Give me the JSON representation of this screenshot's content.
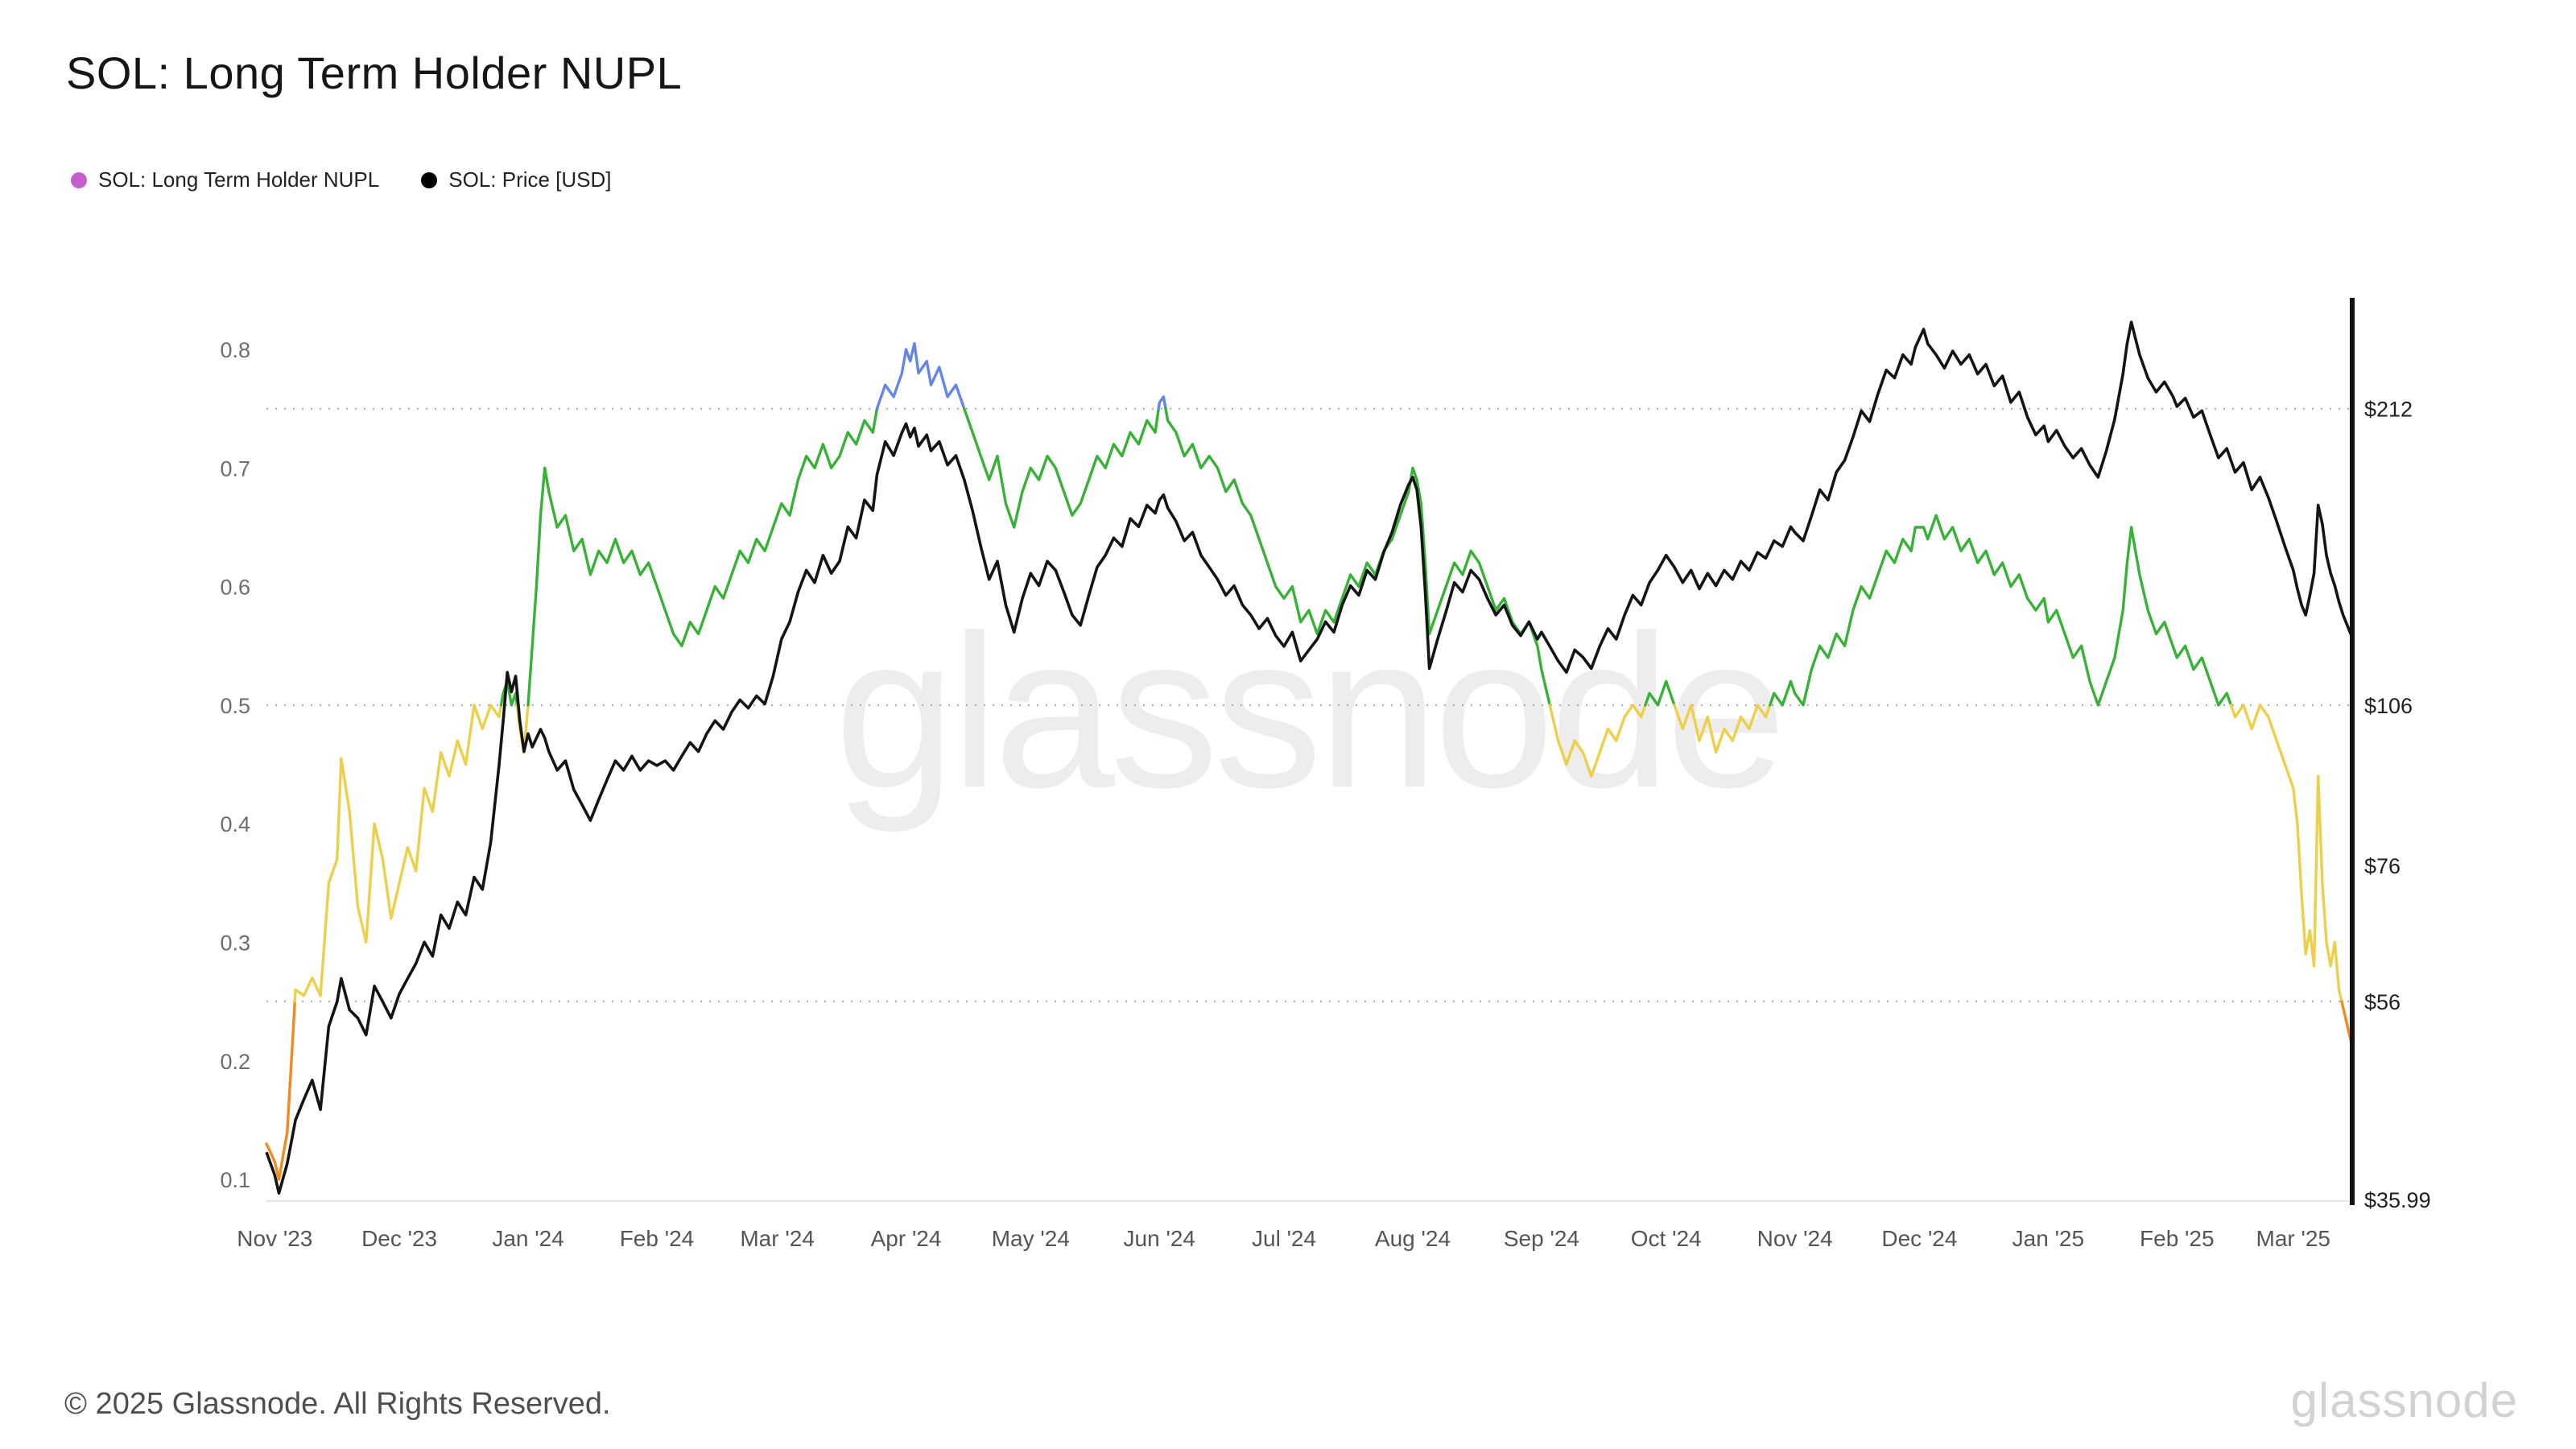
{
  "page": {
    "title": "SOL: Long Term Holder NUPL",
    "footer": "© 2025 Glassnode. All Rights Reserved.",
    "watermark": "glassnode"
  },
  "legend": [
    {
      "label": "SOL: Long Term Holder NUPL",
      "color": "#c55fce"
    },
    {
      "label": "SOL: Price [USD]",
      "color": "#000000"
    }
  ],
  "chart_data": {
    "type": "line",
    "title": "SOL: Long Term Holder NUPL",
    "x_unit": "days since 2023-11-01",
    "x_domain": [
      -2,
      500
    ],
    "x_ticks": [
      {
        "d": 0,
        "label": "Nov '23"
      },
      {
        "d": 30,
        "label": "Dec '23"
      },
      {
        "d": 61,
        "label": "Jan '24"
      },
      {
        "d": 92,
        "label": "Feb '24"
      },
      {
        "d": 121,
        "label": "Mar '24"
      },
      {
        "d": 152,
        "label": "Apr '24"
      },
      {
        "d": 182,
        "label": "May '24"
      },
      {
        "d": 213,
        "label": "Jun '24"
      },
      {
        "d": 243,
        "label": "Jul '24"
      },
      {
        "d": 274,
        "label": "Aug '24"
      },
      {
        "d": 305,
        "label": "Sep '24"
      },
      {
        "d": 335,
        "label": "Oct '24"
      },
      {
        "d": 366,
        "label": "Nov '24"
      },
      {
        "d": 396,
        "label": "Dec '24"
      },
      {
        "d": 427,
        "label": "Jan '25"
      },
      {
        "d": 458,
        "label": "Feb '25"
      },
      {
        "d": 486,
        "label": "Mar '25"
      }
    ],
    "left_axis": {
      "name": "NUPL",
      "ticks": [
        0.1,
        0.2,
        0.3,
        0.4,
        0.5,
        0.6,
        0.7,
        0.8
      ]
    },
    "right_axis": {
      "name": "SOL Price [USD]",
      "scale": "log",
      "ticks": [
        {
          "value": 212,
          "label": "$212",
          "gridline": true,
          "nupl_level": 0.75
        },
        {
          "value": 106,
          "label": "$106",
          "gridline": true,
          "nupl_level": 0.5
        },
        {
          "value": 76,
          "label": "$76",
          "gridline": false,
          "nupl_level": null
        },
        {
          "value": 56,
          "label": "$56",
          "gridline": true,
          "nupl_level": 0.25
        },
        {
          "value": 35.99,
          "label": "$35.99",
          "gridline": false,
          "nupl_level": null
        }
      ]
    },
    "bands": [
      {
        "max": 0.25,
        "color": "#f18a1f"
      },
      {
        "max": 0.5,
        "color": "#eecf4a"
      },
      {
        "max": 0.75,
        "color": "#37b237"
      },
      {
        "max": 10,
        "color": "#6486e6"
      }
    ],
    "price_color": "#141414",
    "series_names": [
      "SOL: Long Term Holder NUPL",
      "SOL: Price [USD]"
    ],
    "points_format": [
      "day",
      "nupl",
      "price_usd"
    ],
    "points": [
      [
        -2,
        0.13,
        40
      ],
      [
        0,
        0.115,
        38
      ],
      [
        1,
        0.1,
        36.5
      ],
      [
        3,
        0.14,
        39
      ],
      [
        5,
        0.26,
        43
      ],
      [
        7,
        0.255,
        45
      ],
      [
        9,
        0.27,
        47
      ],
      [
        11,
        0.255,
        44
      ],
      [
        13,
        0.35,
        53
      ],
      [
        15,
        0.37,
        56
      ],
      [
        16,
        0.455,
        59
      ],
      [
        18,
        0.41,
        55
      ],
      [
        20,
        0.33,
        54
      ],
      [
        22,
        0.3,
        52
      ],
      [
        24,
        0.4,
        58
      ],
      [
        26,
        0.37,
        56
      ],
      [
        28,
        0.32,
        54
      ],
      [
        30,
        0.35,
        57
      ],
      [
        32,
        0.38,
        59
      ],
      [
        34,
        0.36,
        61
      ],
      [
        36,
        0.43,
        64
      ],
      [
        38,
        0.41,
        62
      ],
      [
        40,
        0.46,
        68
      ],
      [
        42,
        0.44,
        66
      ],
      [
        44,
        0.47,
        70
      ],
      [
        46,
        0.45,
        68
      ],
      [
        48,
        0.5,
        74
      ],
      [
        50,
        0.48,
        72
      ],
      [
        52,
        0.5,
        80
      ],
      [
        54,
        0.49,
        95
      ],
      [
        55,
        0.51,
        105
      ],
      [
        56,
        0.52,
        117
      ],
      [
        57,
        0.5,
        112
      ],
      [
        58,
        0.51,
        116
      ],
      [
        59,
        0.48,
        105
      ],
      [
        60,
        0.46,
        98
      ],
      [
        61,
        0.5,
        102
      ],
      [
        62,
        0.55,
        99
      ],
      [
        63,
        0.6,
        101
      ],
      [
        64,
        0.66,
        103
      ],
      [
        65,
        0.7,
        101
      ],
      [
        66,
        0.68,
        98
      ],
      [
        68,
        0.65,
        94
      ],
      [
        70,
        0.66,
        96
      ],
      [
        72,
        0.63,
        90
      ],
      [
        74,
        0.64,
        87
      ],
      [
        76,
        0.61,
        84
      ],
      [
        78,
        0.63,
        88
      ],
      [
        80,
        0.62,
        92
      ],
      [
        82,
        0.64,
        96
      ],
      [
        84,
        0.62,
        94
      ],
      [
        86,
        0.63,
        97
      ],
      [
        88,
        0.61,
        94
      ],
      [
        90,
        0.62,
        96
      ],
      [
        92,
        0.6,
        95
      ],
      [
        94,
        0.58,
        96
      ],
      [
        96,
        0.56,
        94
      ],
      [
        98,
        0.55,
        97
      ],
      [
        100,
        0.57,
        100
      ],
      [
        102,
        0.56,
        98
      ],
      [
        104,
        0.58,
        102
      ],
      [
        106,
        0.6,
        105
      ],
      [
        108,
        0.59,
        103
      ],
      [
        110,
        0.61,
        107
      ],
      [
        112,
        0.63,
        110
      ],
      [
        114,
        0.62,
        108
      ],
      [
        116,
        0.64,
        111
      ],
      [
        118,
        0.63,
        109
      ],
      [
        120,
        0.65,
        116
      ],
      [
        122,
        0.67,
        126
      ],
      [
        124,
        0.66,
        131
      ],
      [
        126,
        0.69,
        140
      ],
      [
        128,
        0.71,
        147
      ],
      [
        130,
        0.7,
        143
      ],
      [
        132,
        0.72,
        152
      ],
      [
        134,
        0.7,
        146
      ],
      [
        136,
        0.71,
        150
      ],
      [
        138,
        0.73,
        162
      ],
      [
        140,
        0.72,
        158
      ],
      [
        142,
        0.74,
        172
      ],
      [
        144,
        0.73,
        168
      ],
      [
        145,
        0.75,
        182
      ],
      [
        147,
        0.77,
        196
      ],
      [
        149,
        0.76,
        190
      ],
      [
        151,
        0.78,
        200
      ],
      [
        152,
        0.8,
        204
      ],
      [
        153,
        0.79,
        198
      ],
      [
        154,
        0.805,
        202
      ],
      [
        155,
        0.78,
        194
      ],
      [
        157,
        0.79,
        199
      ],
      [
        158,
        0.77,
        192
      ],
      [
        160,
        0.785,
        196
      ],
      [
        162,
        0.76,
        186
      ],
      [
        164,
        0.77,
        190
      ],
      [
        166,
        0.75,
        180
      ],
      [
        168,
        0.73,
        168
      ],
      [
        170,
        0.71,
        155
      ],
      [
        172,
        0.69,
        144
      ],
      [
        174,
        0.71,
        150
      ],
      [
        176,
        0.67,
        136
      ],
      [
        178,
        0.65,
        128
      ],
      [
        180,
        0.68,
        138
      ],
      [
        182,
        0.7,
        146
      ],
      [
        184,
        0.69,
        142
      ],
      [
        186,
        0.71,
        150
      ],
      [
        188,
        0.7,
        147
      ],
      [
        190,
        0.68,
        140
      ],
      [
        192,
        0.66,
        133
      ],
      [
        194,
        0.67,
        130
      ],
      [
        196,
        0.69,
        139
      ],
      [
        198,
        0.71,
        148
      ],
      [
        200,
        0.7,
        152
      ],
      [
        202,
        0.72,
        158
      ],
      [
        204,
        0.71,
        155
      ],
      [
        206,
        0.73,
        165
      ],
      [
        208,
        0.72,
        162
      ],
      [
        210,
        0.74,
        170
      ],
      [
        212,
        0.73,
        167
      ],
      [
        213,
        0.755,
        172
      ],
      [
        214,
        0.76,
        174
      ],
      [
        215,
        0.74,
        169
      ],
      [
        217,
        0.73,
        164
      ],
      [
        219,
        0.71,
        157
      ],
      [
        221,
        0.72,
        160
      ],
      [
        223,
        0.7,
        152
      ],
      [
        225,
        0.71,
        148
      ],
      [
        227,
        0.7,
        144
      ],
      [
        229,
        0.68,
        139
      ],
      [
        231,
        0.69,
        142
      ],
      [
        233,
        0.67,
        136
      ],
      [
        235,
        0.66,
        133
      ],
      [
        237,
        0.64,
        129
      ],
      [
        239,
        0.62,
        132
      ],
      [
        241,
        0.6,
        127
      ],
      [
        243,
        0.59,
        124
      ],
      [
        245,
        0.6,
        128
      ],
      [
        247,
        0.57,
        120
      ],
      [
        249,
        0.58,
        123
      ],
      [
        251,
        0.56,
        126
      ],
      [
        253,
        0.58,
        131
      ],
      [
        255,
        0.57,
        128
      ],
      [
        257,
        0.59,
        136
      ],
      [
        259,
        0.61,
        142
      ],
      [
        261,
        0.6,
        139
      ],
      [
        263,
        0.62,
        147
      ],
      [
        265,
        0.61,
        144
      ],
      [
        267,
        0.63,
        153
      ],
      [
        269,
        0.64,
        160
      ],
      [
        271,
        0.66,
        170
      ],
      [
        273,
        0.68,
        178
      ],
      [
        274,
        0.7,
        181
      ],
      [
        275,
        0.69,
        176
      ],
      [
        276,
        0.67,
        162
      ],
      [
        277,
        0.62,
        140
      ],
      [
        278,
        0.56,
        118
      ],
      [
        280,
        0.58,
        126
      ],
      [
        282,
        0.6,
        134
      ],
      [
        284,
        0.62,
        143
      ],
      [
        286,
        0.61,
        140
      ],
      [
        288,
        0.63,
        147
      ],
      [
        290,
        0.62,
        144
      ],
      [
        292,
        0.6,
        138
      ],
      [
        294,
        0.58,
        133
      ],
      [
        296,
        0.59,
        136
      ],
      [
        298,
        0.57,
        130
      ],
      [
        300,
        0.56,
        127
      ],
      [
        302,
        0.57,
        131
      ],
      [
        304,
        0.55,
        126
      ],
      [
        305,
        0.53,
        128
      ],
      [
        307,
        0.5,
        124
      ],
      [
        309,
        0.47,
        120
      ],
      [
        311,
        0.45,
        117
      ],
      [
        313,
        0.47,
        123
      ],
      [
        315,
        0.46,
        121
      ],
      [
        317,
        0.44,
        118
      ],
      [
        319,
        0.46,
        124
      ],
      [
        321,
        0.48,
        129
      ],
      [
        323,
        0.47,
        126
      ],
      [
        325,
        0.49,
        133
      ],
      [
        327,
        0.5,
        139
      ],
      [
        329,
        0.49,
        136
      ],
      [
        331,
        0.51,
        143
      ],
      [
        333,
        0.5,
        147
      ],
      [
        335,
        0.52,
        152
      ],
      [
        337,
        0.5,
        148
      ],
      [
        339,
        0.48,
        143
      ],
      [
        341,
        0.5,
        147
      ],
      [
        343,
        0.47,
        141
      ],
      [
        345,
        0.49,
        146
      ],
      [
        347,
        0.46,
        142
      ],
      [
        349,
        0.48,
        147
      ],
      [
        351,
        0.47,
        144
      ],
      [
        353,
        0.49,
        150
      ],
      [
        355,
        0.48,
        147
      ],
      [
        357,
        0.5,
        153
      ],
      [
        359,
        0.49,
        151
      ],
      [
        361,
        0.51,
        157
      ],
      [
        363,
        0.5,
        155
      ],
      [
        365,
        0.52,
        162
      ],
      [
        366,
        0.51,
        160
      ],
      [
        368,
        0.5,
        157
      ],
      [
        370,
        0.53,
        166
      ],
      [
        372,
        0.55,
        176
      ],
      [
        374,
        0.54,
        172
      ],
      [
        376,
        0.56,
        183
      ],
      [
        378,
        0.55,
        188
      ],
      [
        380,
        0.58,
        198
      ],
      [
        382,
        0.6,
        210
      ],
      [
        384,
        0.59,
        205
      ],
      [
        386,
        0.61,
        218
      ],
      [
        388,
        0.63,
        230
      ],
      [
        390,
        0.62,
        226
      ],
      [
        392,
        0.64,
        238
      ],
      [
        394,
        0.63,
        233
      ],
      [
        395,
        0.65,
        242
      ],
      [
        397,
        0.65,
        252
      ],
      [
        398,
        0.64,
        244
      ],
      [
        400,
        0.66,
        238
      ],
      [
        402,
        0.64,
        231
      ],
      [
        404,
        0.65,
        240
      ],
      [
        406,
        0.63,
        233
      ],
      [
        408,
        0.64,
        238
      ],
      [
        410,
        0.62,
        228
      ],
      [
        412,
        0.63,
        233
      ],
      [
        414,
        0.61,
        222
      ],
      [
        416,
        0.62,
        227
      ],
      [
        418,
        0.6,
        214
      ],
      [
        420,
        0.61,
        219
      ],
      [
        422,
        0.59,
        207
      ],
      [
        424,
        0.58,
        199
      ],
      [
        426,
        0.59,
        203
      ],
      [
        427,
        0.57,
        196
      ],
      [
        429,
        0.58,
        201
      ],
      [
        431,
        0.56,
        194
      ],
      [
        433,
        0.54,
        189
      ],
      [
        435,
        0.55,
        193
      ],
      [
        437,
        0.52,
        186
      ],
      [
        439,
        0.5,
        181
      ],
      [
        441,
        0.52,
        192
      ],
      [
        443,
        0.54,
        206
      ],
      [
        445,
        0.58,
        228
      ],
      [
        446,
        0.62,
        244
      ],
      [
        447,
        0.65,
        256
      ],
      [
        449,
        0.61,
        238
      ],
      [
        451,
        0.58,
        226
      ],
      [
        453,
        0.56,
        219
      ],
      [
        455,
        0.57,
        224
      ],
      [
        457,
        0.55,
        217
      ],
      [
        458,
        0.54,
        212
      ],
      [
        460,
        0.55,
        216
      ],
      [
        462,
        0.53,
        207
      ],
      [
        464,
        0.54,
        210
      ],
      [
        466,
        0.52,
        199
      ],
      [
        468,
        0.5,
        189
      ],
      [
        470,
        0.51,
        193
      ],
      [
        472,
        0.49,
        183
      ],
      [
        474,
        0.5,
        187
      ],
      [
        476,
        0.48,
        176
      ],
      [
        478,
        0.5,
        181
      ],
      [
        480,
        0.49,
        173
      ],
      [
        482,
        0.47,
        164
      ],
      [
        484,
        0.45,
        155
      ],
      [
        486,
        0.43,
        147
      ],
      [
        487,
        0.4,
        141
      ],
      [
        488,
        0.34,
        136
      ],
      [
        489,
        0.29,
        133
      ],
      [
        490,
        0.31,
        139
      ],
      [
        491,
        0.28,
        146
      ],
      [
        492,
        0.44,
        170
      ],
      [
        493,
        0.35,
        163
      ],
      [
        494,
        0.3,
        152
      ],
      [
        495,
        0.28,
        146
      ],
      [
        496,
        0.3,
        142
      ],
      [
        497,
        0.26,
        137
      ],
      [
        498,
        0.245,
        133
      ],
      [
        499,
        0.23,
        130
      ],
      [
        500,
        0.215,
        127
      ]
    ]
  }
}
